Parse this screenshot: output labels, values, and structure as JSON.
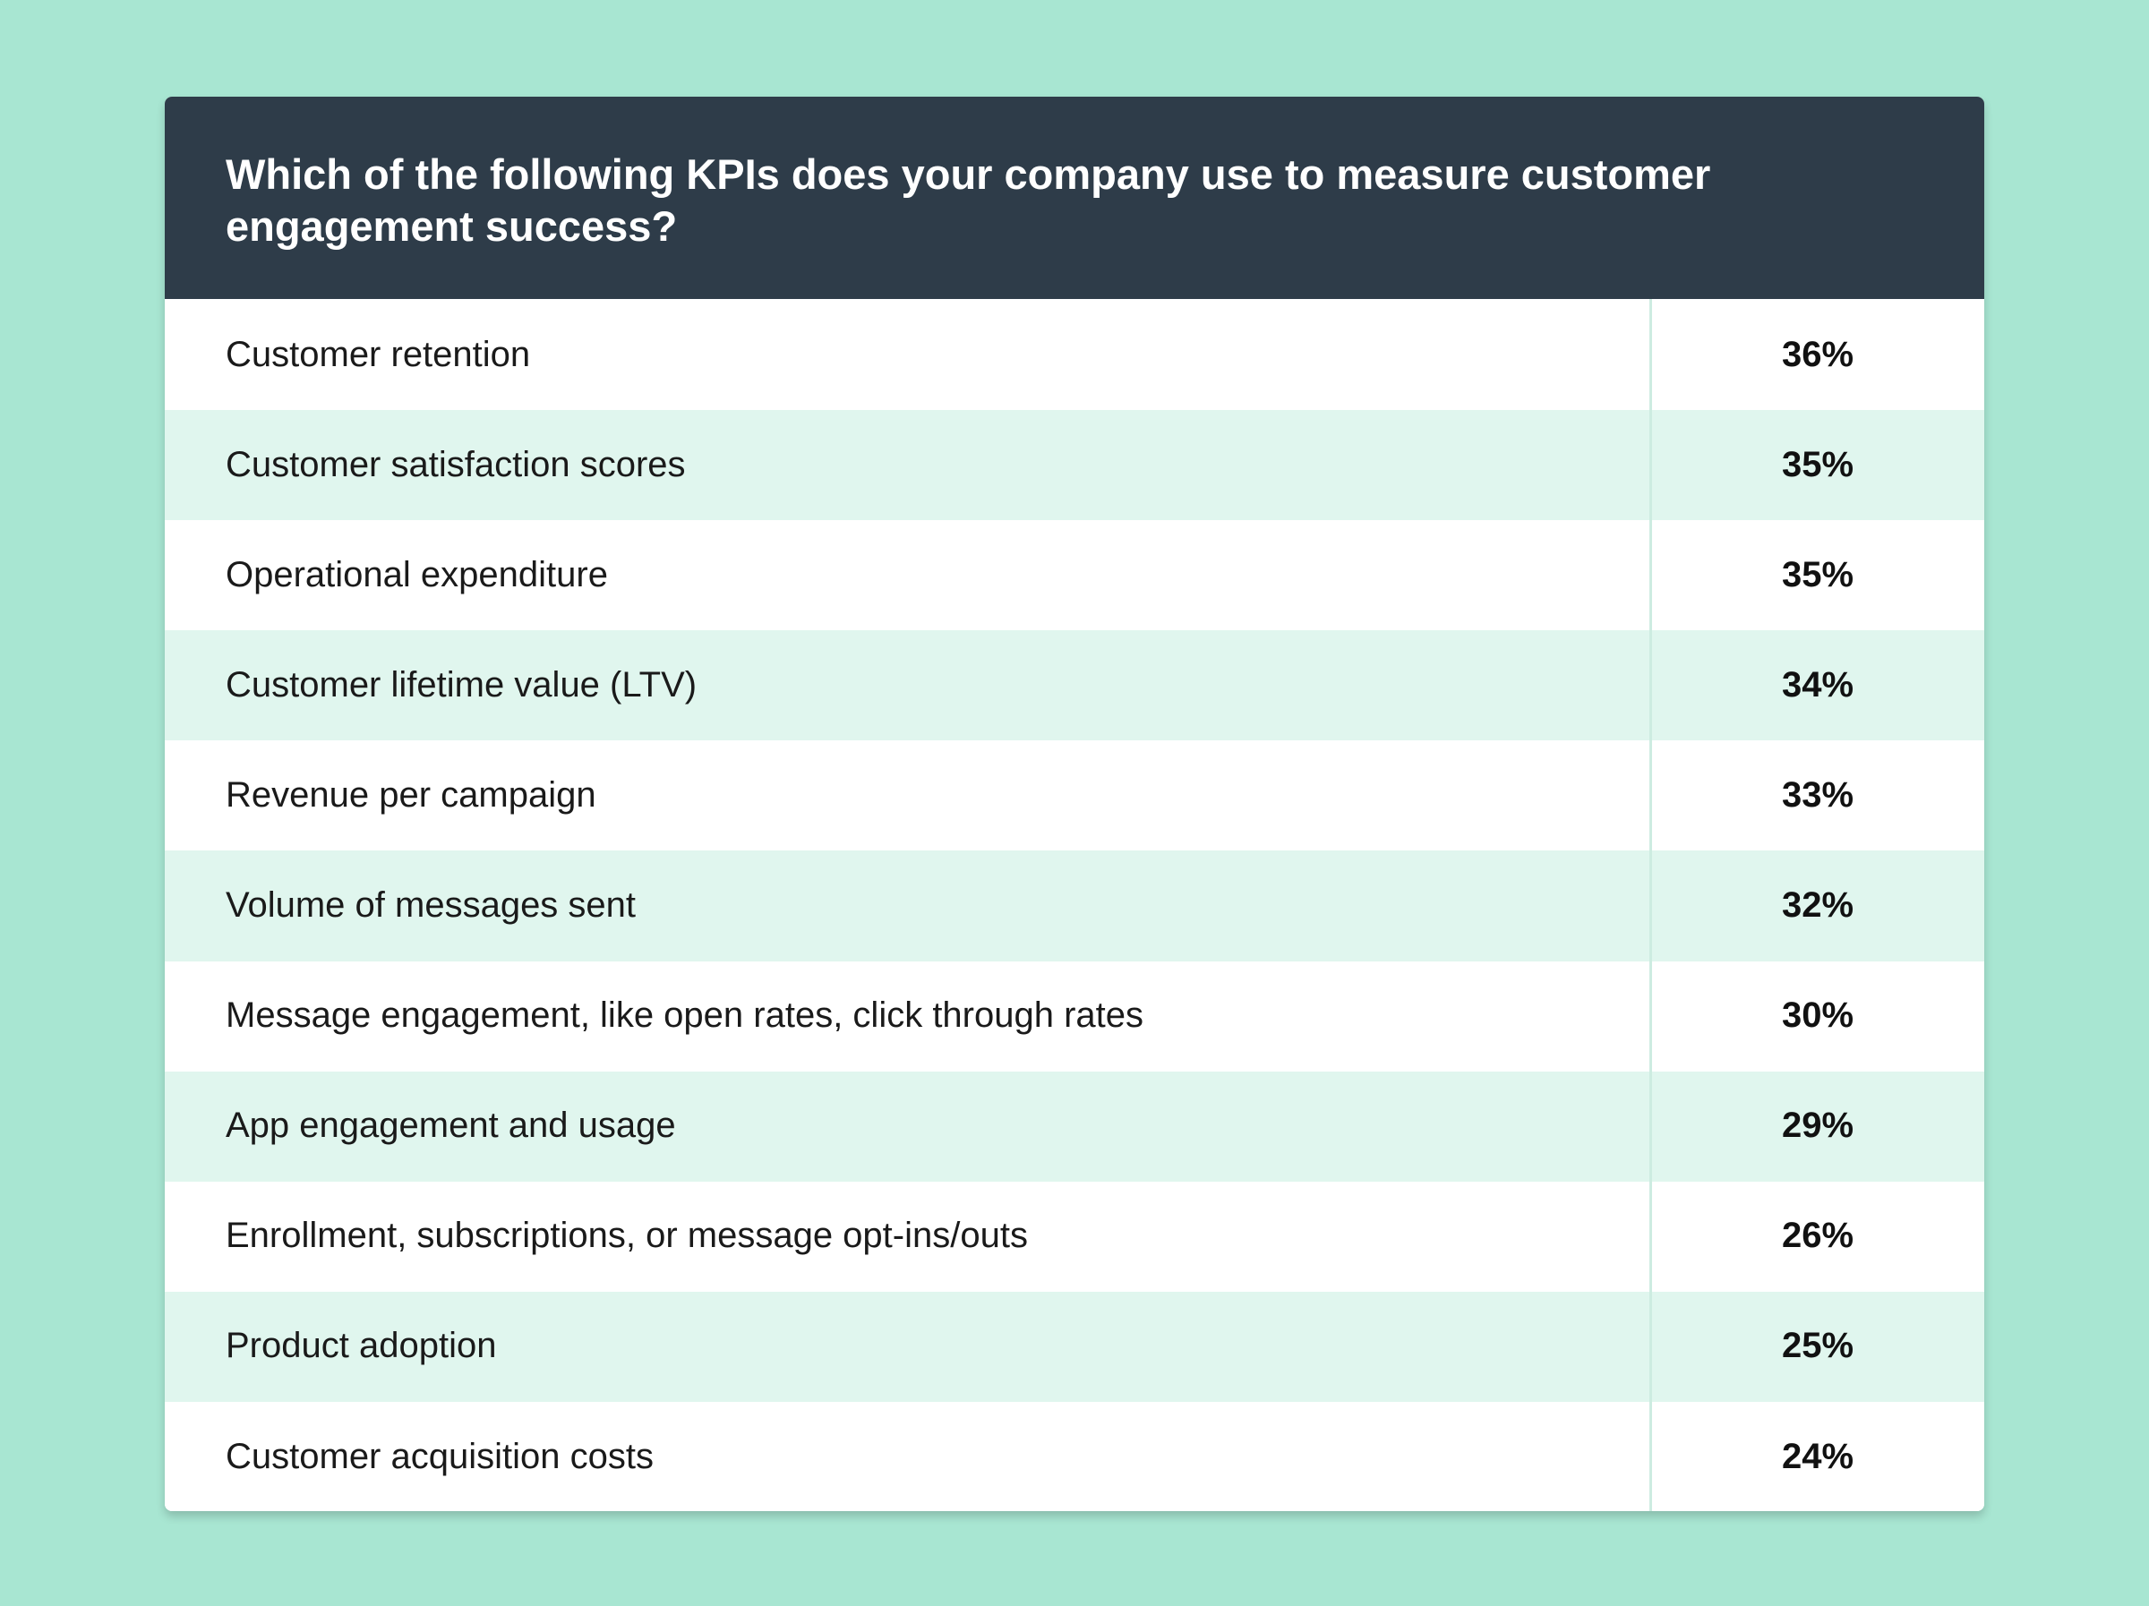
{
  "chart_data": {
    "type": "table",
    "title": "Which of the following KPIs does your company use to measure customer engagement success?",
    "rows": [
      {
        "label": "Customer retention",
        "value": "36%",
        "number": 36
      },
      {
        "label": "Customer satisfaction scores",
        "value": "35%",
        "number": 35
      },
      {
        "label": "Operational expenditure",
        "value": "35%",
        "number": 35
      },
      {
        "label": "Customer lifetime value (LTV)",
        "value": "34%",
        "number": 34
      },
      {
        "label": "Revenue per campaign",
        "value": "33%",
        "number": 33
      },
      {
        "label": "Volume of messages sent",
        "value": "32%",
        "number": 32
      },
      {
        "label": "Message engagement, like open rates, click through rates",
        "value": "30%",
        "number": 30
      },
      {
        "label": "App engagement and usage",
        "value": "29%",
        "number": 29
      },
      {
        "label": "Enrollment, subscriptions, or message opt-ins/outs",
        "value": "26%",
        "number": 26
      },
      {
        "label": "Product adoption",
        "value": "25%",
        "number": 25
      },
      {
        "label": "Customer acquisition costs",
        "value": "24%",
        "number": 24
      }
    ]
  },
  "colors": {
    "background": "#a8e6d2",
    "header": "#2e3c49",
    "row_alt": "#e0f6ee",
    "row_plain": "#ffffff"
  }
}
